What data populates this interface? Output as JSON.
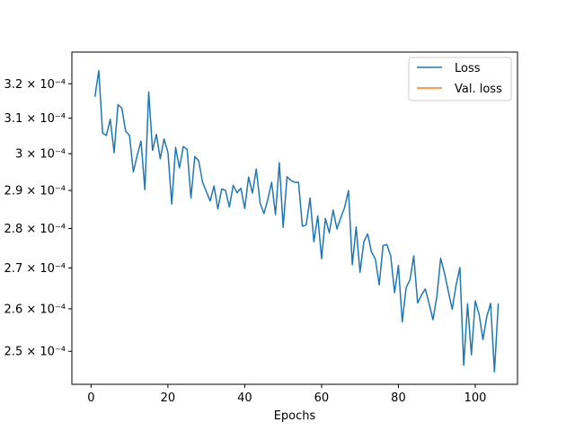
{
  "chart_data": {
    "type": "line",
    "title": "",
    "xlabel": "Epochs",
    "ylabel": "",
    "xlim": [
      -5,
      111
    ],
    "ylim": [
      0.0002425,
      0.0003295
    ],
    "y_scale": "log",
    "grid": false,
    "legend_position": "top-right",
    "x_ticks": [
      0,
      20,
      40,
      60,
      80,
      100
    ],
    "y_ticks": [
      {
        "value": 0.00025,
        "label": "2.5 × 10⁻⁴"
      },
      {
        "value": 0.00026,
        "label": "2.6 × 10⁻⁴"
      },
      {
        "value": 0.00027,
        "label": "2.7 × 10⁻⁴"
      },
      {
        "value": 0.00028,
        "label": "2.8 × 10⁻⁴"
      },
      {
        "value": 0.00029,
        "label": "2.9 × 10⁻⁴"
      },
      {
        "value": 0.0003,
        "label": "3 × 10⁻⁴"
      },
      {
        "value": 0.00031,
        "label": "3.1 × 10⁻⁴"
      },
      {
        "value": 0.00032,
        "label": "3.2 × 10⁻⁴"
      }
    ],
    "series": [
      {
        "name": "Loss",
        "color": "#1f77b4",
        "x": [
          1,
          2,
          3,
          4,
          5,
          6,
          7,
          8,
          9,
          10,
          11,
          12,
          13,
          14,
          15,
          16,
          17,
          18,
          19,
          20,
          21,
          22,
          23,
          24,
          25,
          26,
          27,
          28,
          29,
          30,
          31,
          32,
          33,
          34,
          35,
          36,
          37,
          38,
          39,
          40,
          41,
          42,
          43,
          44,
          45,
          46,
          47,
          48,
          49,
          50,
          51,
          52,
          53,
          54,
          55,
          56,
          57,
          58,
          59,
          60,
          61,
          62,
          63,
          64,
          65,
          66,
          67,
          68,
          69,
          70,
          71,
          72,
          73,
          74,
          75,
          76,
          77,
          78,
          79,
          80,
          81,
          82,
          83,
          84,
          85,
          86,
          87,
          88,
          89,
          90,
          91,
          92,
          93,
          94,
          95,
          96,
          97,
          98,
          99,
          100,
          101,
          102,
          103,
          104,
          105,
          106
        ],
        "values": [
          0.0003162,
          0.0003239,
          0.0003058,
          0.0003051,
          0.0003097,
          0.0003003,
          0.0003139,
          0.0003129,
          0.0003063,
          0.0003051,
          0.000295,
          0.0002995,
          0.0003035,
          0.0002902,
          0.0003176,
          0.0003009,
          0.0003054,
          0.0002986,
          0.0003041,
          0.0003004,
          0.0002864,
          0.0003018,
          0.0002961,
          0.000302,
          0.0003012,
          0.000288,
          0.0002992,
          0.0002981,
          0.0002923,
          0.0002897,
          0.0002872,
          0.0002912,
          0.0002851,
          0.0002904,
          0.00029,
          0.0002856,
          0.0002914,
          0.0002894,
          0.0002906,
          0.0002852,
          0.0002936,
          0.0002893,
          0.0002958,
          0.0002866,
          0.0002839,
          0.0002876,
          0.0002922,
          0.0002836,
          0.0002975,
          0.0002803,
          0.0002937,
          0.0002927,
          0.0002922,
          0.0002922,
          0.0002806,
          0.0002809,
          0.000288,
          0.0002766,
          0.0002833,
          0.0002723,
          0.0002826,
          0.0002789,
          0.0002848,
          0.0002799,
          0.0002828,
          0.0002855,
          0.00029,
          0.0002708,
          0.0002804,
          0.0002689,
          0.0002766,
          0.0002786,
          0.000274,
          0.0002722,
          0.0002658,
          0.0002756,
          0.0002759,
          0.000273,
          0.0002639,
          0.0002706,
          0.0002569,
          0.0002651,
          0.000267,
          0.000273,
          0.0002614,
          0.0002633,
          0.0002648,
          0.0002612,
          0.0002574,
          0.0002629,
          0.0002724,
          0.0002687,
          0.0002642,
          0.0002599,
          0.0002657,
          0.0002701,
          0.0002468,
          0.0002612,
          0.0002492,
          0.0002619,
          0.0002587,
          0.0002527,
          0.0002581,
          0.0002613,
          0.0002453,
          0.0002613
        ]
      },
      {
        "name": "Val. loss",
        "color": "#ff7f0e",
        "x": [],
        "values": []
      }
    ]
  }
}
